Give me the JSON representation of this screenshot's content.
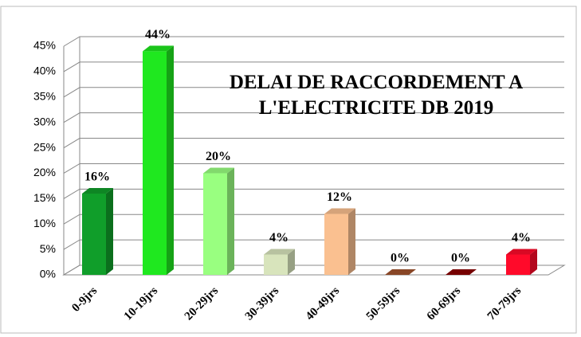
{
  "chart_data": {
    "type": "bar3d",
    "title": "DELAI DE RACCORDEMENT A L'ELECTRICITE DB 2019",
    "categories": [
      "0-9jrs",
      "10-19jrs",
      "20-29jrs",
      "30-39jrs",
      "40-49jrs",
      "50-59jrs",
      "60-69jrs",
      "70-79jrs"
    ],
    "values": [
      16,
      44,
      20,
      4,
      12,
      0,
      0,
      4
    ],
    "value_labels": [
      "16%",
      "44%",
      "20%",
      "4%",
      "12%",
      "0%",
      "0%",
      "4%"
    ],
    "colors": [
      "#109e2a",
      "#1fe81f",
      "#99ff80",
      "#d8e4bc",
      "#fac090",
      "#a0522d",
      "#8b0000",
      "#ff0a2a"
    ],
    "ylim": [
      0,
      45
    ],
    "yticks": [
      {
        "value": 0,
        "label": "0%"
      },
      {
        "value": 5,
        "label": "5%"
      },
      {
        "value": 10,
        "label": "10%"
      },
      {
        "value": 15,
        "label": "15%"
      },
      {
        "value": 20,
        "label": "20%"
      },
      {
        "value": 25,
        "label": "25%"
      },
      {
        "value": 30,
        "label": "30%"
      },
      {
        "value": 35,
        "label": "35%"
      },
      {
        "value": 40,
        "label": "40%"
      },
      {
        "value": 45,
        "label": "45%"
      }
    ],
    "grid": true
  }
}
